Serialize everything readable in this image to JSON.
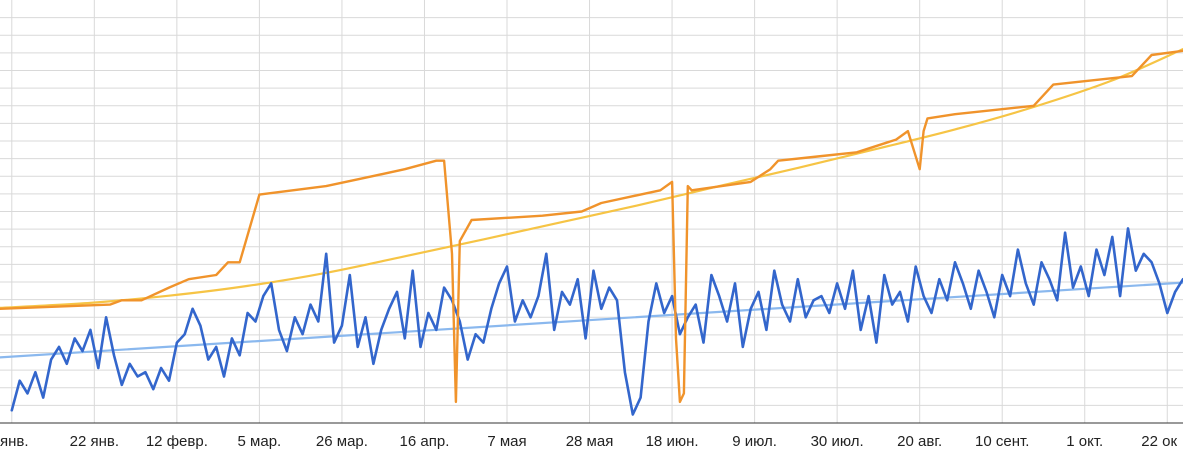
{
  "chart_data": {
    "type": "line",
    "x_tick_labels": [
      "янв.",
      "22 янв.",
      "12 февр.",
      "5 мар.",
      "26 мар.",
      "16 апр.",
      "7 мая",
      "28 мая",
      "18 июн.",
      "9 июл.",
      "30 июл.",
      "20 авг.",
      "10 сент.",
      "1 окт.",
      "22 ок"
    ],
    "x_tick_positions_day": [
      0,
      21,
      42,
      63,
      84,
      105,
      126,
      147,
      168,
      189,
      210,
      231,
      252,
      273,
      294
    ],
    "x_range_day": [
      -3,
      298
    ],
    "y_range": [
      0,
      100
    ],
    "grid": true,
    "legend": "none",
    "colors": {
      "daily": "#3366cc",
      "daily_trend": "#8ab8ee",
      "cumulative": "#f0932b",
      "cumulative_trend": "#f6c445",
      "grid": "#d9d9d9",
      "axis": "#333333"
    },
    "series": [
      {
        "key": "daily",
        "x_day": [
          0,
          2,
          4,
          6,
          8,
          10,
          12,
          14,
          16,
          18,
          20,
          22,
          24,
          26,
          28,
          30,
          32,
          34,
          36,
          38,
          40,
          42,
          44,
          46,
          48,
          50,
          52,
          54,
          56,
          58,
          60,
          62,
          64,
          66,
          68,
          70,
          72,
          74,
          76,
          78,
          80,
          82,
          84,
          86,
          88,
          90,
          92,
          94,
          96,
          98,
          100,
          102,
          104,
          106,
          108,
          110,
          112,
          114,
          116,
          118,
          120,
          122,
          124,
          126,
          128,
          130,
          132,
          134,
          136,
          138,
          140,
          142,
          144,
          146,
          148,
          150,
          152,
          154,
          156,
          158,
          160,
          162,
          164,
          166,
          168,
          170,
          172,
          174,
          176,
          178,
          180,
          182,
          184,
          186,
          188,
          190,
          192,
          194,
          196,
          198,
          200,
          202,
          204,
          206,
          208,
          210,
          212,
          214,
          216,
          218,
          220,
          222,
          224,
          226,
          228,
          230,
          232,
          234,
          236,
          238,
          240,
          242,
          244,
          246,
          248,
          250,
          252,
          254,
          256,
          258,
          260,
          262,
          264,
          266,
          268,
          270,
          272,
          274,
          276,
          278,
          280,
          282,
          284,
          286,
          288,
          290,
          292,
          294,
          296,
          298
        ],
        "y": [
          3,
          10,
          7,
          12,
          6,
          15,
          18,
          14,
          20,
          17,
          22,
          13,
          25,
          16,
          9,
          14,
          11,
          12,
          8,
          13,
          10,
          19,
          21,
          27,
          23,
          15,
          18,
          11,
          20,
          16,
          26,
          24,
          30,
          33,
          22,
          17,
          25,
          21,
          28,
          24,
          40,
          19,
          23,
          35,
          18,
          25,
          14,
          22,
          27,
          31,
          20,
          36,
          18,
          26,
          22,
          32,
          29,
          24,
          15,
          21,
          19,
          27,
          33,
          37,
          24,
          29,
          25,
          30,
          40,
          22,
          31,
          28,
          34,
          20,
          36,
          27,
          32,
          29,
          12,
          2,
          6,
          24,
          33,
          26,
          30,
          21,
          25,
          28,
          19,
          35,
          30,
          24,
          33,
          18,
          27,
          31,
          22,
          36,
          28,
          24,
          34,
          25,
          29,
          30,
          26,
          33,
          27,
          36,
          22,
          30,
          19,
          35,
          28,
          31,
          24,
          37,
          30,
          26,
          34,
          29,
          38,
          33,
          27,
          36,
          31,
          25,
          35,
          30,
          41,
          33,
          28,
          38,
          34,
          29,
          45,
          32,
          37,
          30,
          41,
          35,
          44,
          30,
          46,
          36,
          40,
          38,
          33,
          26,
          31,
          34
        ],
        "smooth": false
      },
      {
        "key": "daily_trend",
        "x_day": [
          -3,
          298
        ],
        "y": [
          15.5,
          33.2
        ],
        "smooth": false
      },
      {
        "key": "cumulative",
        "x_day": [
          -3,
          25,
          28,
          33,
          40,
          45,
          52,
          55,
          58,
          63,
          80,
          90,
          100,
          108,
          110,
          112,
          113,
          114,
          117,
          135,
          145,
          150,
          165,
          168,
          169,
          170,
          171,
          172,
          173,
          188,
          193,
          195,
          205,
          215,
          225,
          228,
          231,
          232,
          233,
          240,
          260,
          265,
          285,
          290,
          298
        ],
        "y": [
          27,
          28,
          29,
          29,
          32,
          34,
          35,
          38,
          38,
          54,
          56,
          58,
          60,
          62,
          62,
          40,
          5,
          43,
          48,
          49,
          50,
          52,
          55,
          57,
          20,
          5,
          7,
          56,
          55,
          57,
          60,
          62,
          63,
          64,
          67,
          69,
          60,
          69,
          72,
          73,
          75,
          80,
          82,
          87,
          88
        ],
        "smooth": false
      },
      {
        "key": "cumulative_trend",
        "x_day": [
          -3,
          20,
          40,
          60,
          80,
          100,
          120,
          140,
          160,
          180,
          200,
          220,
          240,
          260,
          280,
          298
        ],
        "y": [
          27.2,
          28.4,
          30.1,
          32.4,
          35.5,
          39.4,
          43.4,
          47.5,
          51.6,
          56.0,
          60.3,
          64.8,
          69.4,
          74.7,
          81.0,
          88.4
        ],
        "smooth": true
      }
    ]
  }
}
